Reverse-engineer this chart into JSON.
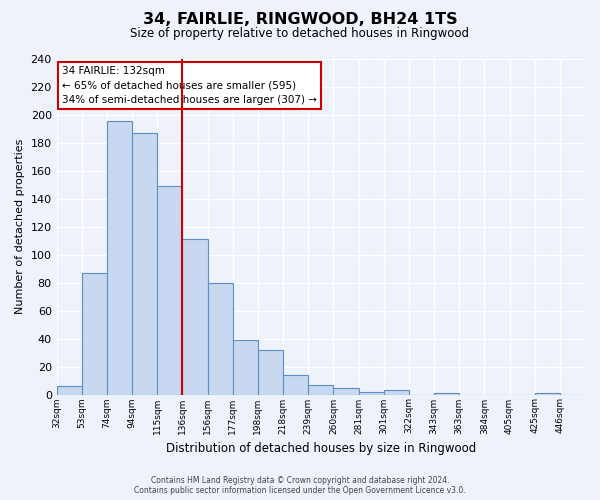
{
  "title": "34, FAIRLIE, RINGWOOD, BH24 1TS",
  "subtitle": "Size of property relative to detached houses in Ringwood",
  "xlabel": "Distribution of detached houses by size in Ringwood",
  "ylabel": "Number of detached properties",
  "bar_labels": [
    "32sqm",
    "53sqm",
    "74sqm",
    "94sqm",
    "115sqm",
    "136sqm",
    "156sqm",
    "177sqm",
    "198sqm",
    "218sqm",
    "239sqm",
    "260sqm",
    "281sqm",
    "301sqm",
    "322sqm",
    "343sqm",
    "363sqm",
    "384sqm",
    "405sqm",
    "425sqm",
    "446sqm"
  ],
  "bar_values": [
    6,
    87,
    196,
    187,
    149,
    111,
    80,
    39,
    32,
    14,
    7,
    5,
    2,
    3,
    0,
    1,
    0,
    0,
    0,
    1,
    0
  ],
  "bar_color": "#c8d8f0",
  "bar_edge_color": "#5b8fc9",
  "ylim": [
    0,
    240
  ],
  "yticks": [
    0,
    20,
    40,
    60,
    80,
    100,
    120,
    140,
    160,
    180,
    200,
    220,
    240
  ],
  "property_line_x": 5,
  "property_line_color": "#cc0000",
  "annotation_title": "34 FAIRLIE: 132sqm",
  "annotation_line1": "← 65% of detached houses are smaller (595)",
  "annotation_line2": "34% of semi-detached houses are larger (307) →",
  "annotation_box_color": "#ffffff",
  "annotation_box_edge_color": "#cc0000",
  "footer_line1": "Contains HM Land Registry data © Crown copyright and database right 2024.",
  "footer_line2": "Contains public sector information licensed under the Open Government Licence v3.0.",
  "background_color": "#eef2fb"
}
